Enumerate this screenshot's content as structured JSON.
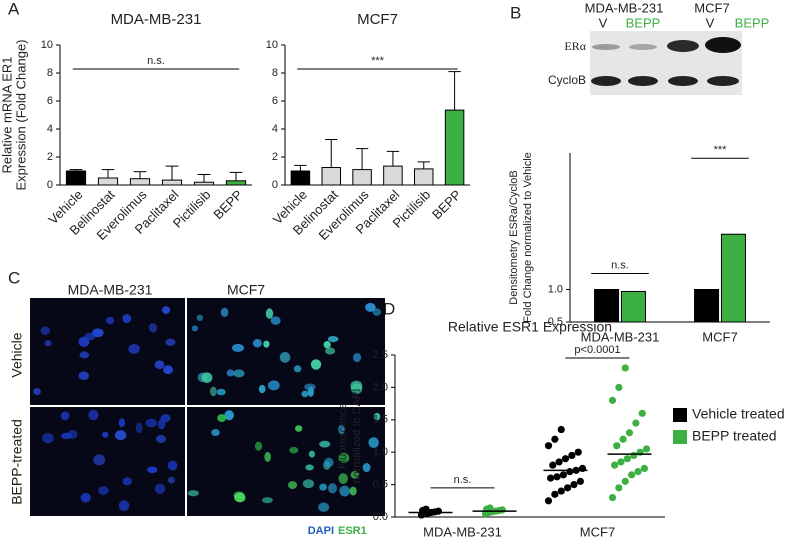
{
  "chart_data": [
    {
      "type": "bar",
      "title": "MDA-MB-231",
      "ylabel": [
        "Relative mRNA ER1",
        "Expression (Fold Change)"
      ],
      "categories": [
        "Vehicle",
        "Belinostat",
        "Everolimus",
        "Paclitaxel",
        "Pictilisib",
        "BEPP"
      ],
      "values": [
        1.0,
        0.5,
        0.45,
        0.35,
        0.2,
        0.3
      ],
      "errors": [
        0.1,
        0.6,
        0.5,
        1.0,
        0.55,
        0.6
      ],
      "colors": [
        "#000000",
        "#d9d9d9",
        "#d9d9d9",
        "#d9d9d9",
        "#d9d9d9",
        "#3cb043"
      ],
      "ylim": [
        0,
        10
      ],
      "yticks": [
        0,
        2,
        4,
        6,
        8,
        10
      ],
      "annotation": "n.s."
    },
    {
      "type": "bar",
      "title": "MCF7",
      "categories": [
        "Vehicle",
        "Belinostat",
        "Everolimus",
        "Paclitaxel",
        "Pictilisib",
        "BEPP"
      ],
      "values": [
        1.0,
        1.25,
        1.1,
        1.35,
        1.15,
        5.35
      ],
      "errors": [
        0.4,
        2.0,
        1.5,
        1.05,
        0.5,
        2.75
      ],
      "colors": [
        "#000000",
        "#d9d9d9",
        "#d9d9d9",
        "#d9d9d9",
        "#d9d9d9",
        "#3cb043"
      ],
      "ylim": [
        0,
        10
      ],
      "yticks": [
        0,
        2,
        4,
        6,
        8,
        10
      ],
      "annotation": "***"
    },
    {
      "type": "bar",
      "ylabel": [
        "Densitometry ESRa/CycloB",
        "Fold Change normalized to Vehicle"
      ],
      "categories": [
        "MDA-MB-231",
        "MCF7"
      ],
      "series": [
        {
          "color": "#000000",
          "values": [
            1.0,
            1.0
          ]
        },
        {
          "color": "#3cb043",
          "values": [
            0.97,
            1.85
          ]
        }
      ],
      "ylim": [
        0.5,
        3.1
      ],
      "yticks": [
        {
          "value": 0.5,
          "label": "0.5"
        },
        {
          "value": 1.0,
          "label": "1.0"
        }
      ],
      "annotations": [
        "n.s.",
        "***"
      ]
    },
    {
      "type": "strip",
      "title": "Relative ESR1 Expression",
      "ylabel": [
        "Fluorescence",
        "normalized to DAPI"
      ],
      "categories": [
        "MDA-MB-231",
        "MCF7"
      ],
      "series": [
        {
          "name": "Vehicle treated",
          "color": "#000000",
          "values": [
            [
              0.03,
              0.05,
              0.06,
              0.07,
              0.08,
              0.09,
              0.1,
              0.12
            ],
            [
              0.25,
              0.35,
              0.4,
              0.45,
              0.5,
              0.55,
              0.6,
              0.62,
              0.65,
              0.7,
              0.72,
              0.75,
              0.8,
              0.85,
              0.9,
              0.95,
              1.0,
              1.1,
              1.2,
              1.35
            ]
          ],
          "means": [
            0.07,
            0.72
          ]
        },
        {
          "name": "BEPP treated",
          "color": "#3cb043",
          "values": [
            [
              0.05,
              0.07,
              0.08,
              0.09,
              0.1,
              0.11,
              0.12,
              0.14
            ],
            [
              0.3,
              0.45,
              0.55,
              0.65,
              0.7,
              0.75,
              0.8,
              0.85,
              0.9,
              0.95,
              1.0,
              1.05,
              1.1,
              1.2,
              1.3,
              1.45,
              1.6,
              1.8,
              2.0,
              2.3
            ]
          ],
          "means": [
            0.09,
            0.97
          ]
        }
      ],
      "ylim": [
        0,
        2.5
      ],
      "yticks": [
        {
          "value": 0,
          "label": "0.0"
        },
        {
          "value": 0.5,
          "label": "0.5"
        },
        {
          "value": 1.0,
          "label": "1.0"
        },
        {
          "value": 1.5,
          "label": "1.5"
        },
        {
          "value": 2.0,
          "label": "2.0"
        },
        {
          "value": 2.5,
          "label": "2.5"
        }
      ],
      "annotations": [
        "n.s.",
        "p<0.0001"
      ]
    }
  ],
  "figure": {
    "panel_labels": [
      "A",
      "B",
      "C",
      "D"
    ],
    "blot": {
      "cell_lines": [
        "MDA-MB-231",
        "MCF7"
      ],
      "lanes": [
        "V",
        "BEPP",
        "V",
        "BEPP"
      ],
      "proteins": [
        "ERα",
        "CycloB"
      ]
    },
    "micrographs": {
      "columns": [
        "MDA-MB-231",
        "MCF7"
      ],
      "rows": [
        "Vehicle",
        "BEPP-treated"
      ],
      "stains": [
        "DAPI",
        "ESR1"
      ]
    }
  }
}
